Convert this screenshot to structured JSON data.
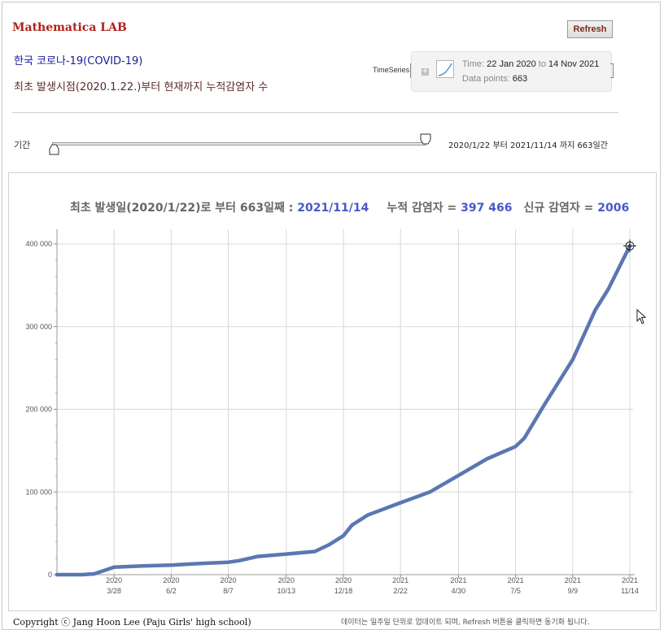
{
  "app": {
    "title": "Mathematica LAB",
    "refresh_label": "Refresh"
  },
  "heading": {
    "line1": "한국 코로나-19(COVID-19)",
    "line2": "최초 발생시점(2020.1.22.)부터 현재까지 누적감염자 수"
  },
  "timeseries": {
    "label": "TimeSeries",
    "time_prefix": "Time: ",
    "time_value": "22 Jan 2020",
    "time_to": " to ",
    "time_end": "14 Nov 2021",
    "points_prefix": "Data points: ",
    "points_value": "663"
  },
  "period": {
    "label": "기간",
    "range_text": "2020/1/22 부터 2021/11/14 까지    663일간",
    "slider_start": 0,
    "slider_end": 1
  },
  "summary": {
    "part1": "최초 발생일(2020/1/22)로 부터 663일째 : ",
    "date": "2021/11/14",
    "part2": "누적 감염자 = ",
    "cumulative": "397 466",
    "part3": "신규 감염자 = ",
    "new_cases": "2006"
  },
  "footer": {
    "copyright": "Copyright ⓒ Jang Hoon Lee (Paju Girls' high school)",
    "note": "데이터는 일주일 단위로 업데이트 되며, Refresh 버튼을 클릭하면 동기화 됩니다."
  },
  "chart_data": {
    "type": "line",
    "series": [
      {
        "color": "#5b77b2",
        "x": [
          "2020-01-22",
          "2020-02-20",
          "2020-03-05",
          "2020-03-28",
          "2020-04-30",
          "2020-06-02",
          "2020-07-05",
          "2020-08-07",
          "2020-08-20",
          "2020-09-10",
          "2020-10-13",
          "2020-11-15",
          "2020-12-01",
          "2020-12-18",
          "2020-12-28",
          "2021-01-15",
          "2021-02-22",
          "2021-03-28",
          "2021-04-30",
          "2021-06-02",
          "2021-07-05",
          "2021-07-15",
          "2021-08-07",
          "2021-09-09",
          "2021-10-05",
          "2021-10-20",
          "2021-11-14"
        ],
        "y": [
          0,
          0,
          1000,
          9000,
          10500,
          11500,
          13500,
          15000,
          17000,
          22000,
          25000,
          28000,
          36000,
          47000,
          60000,
          72000,
          87000,
          100000,
          120000,
          140000,
          155000,
          165000,
          205000,
          260000,
          320000,
          345000,
          397466
        ]
      }
    ],
    "ylim": [
      0,
      400000
    ],
    "yticks": [
      {
        "value": 0,
        "label": "0"
      },
      {
        "value": 100000,
        "label": "100 000"
      },
      {
        "value": 200000,
        "label": "200 000"
      },
      {
        "value": 300000,
        "label": "300 000"
      },
      {
        "value": 400000,
        "label": "400 000"
      }
    ],
    "xticks": [
      {
        "date": "2020-03-28",
        "year": "2020",
        "label": "3/28"
      },
      {
        "date": "2020-06-02",
        "year": "2020",
        "label": "6/2"
      },
      {
        "date": "2020-08-07",
        "year": "2020",
        "label": "8/7"
      },
      {
        "date": "2020-10-13",
        "year": "2020",
        "label": "10/13"
      },
      {
        "date": "2020-12-18",
        "year": "2020",
        "label": "12/18"
      },
      {
        "date": "2021-02-22",
        "year": "2021",
        "label": "2/22"
      },
      {
        "date": "2021-04-30",
        "year": "2021",
        "label": "4/30"
      },
      {
        "date": "2021-07-05",
        "year": "2021",
        "label": "7/5"
      },
      {
        "date": "2021-09-09",
        "year": "2021",
        "label": "9/9"
      },
      {
        "date": "2021-11-14",
        "year": "2021",
        "label": "11/14"
      }
    ],
    "grid": true,
    "marker_at_last_point": true
  }
}
